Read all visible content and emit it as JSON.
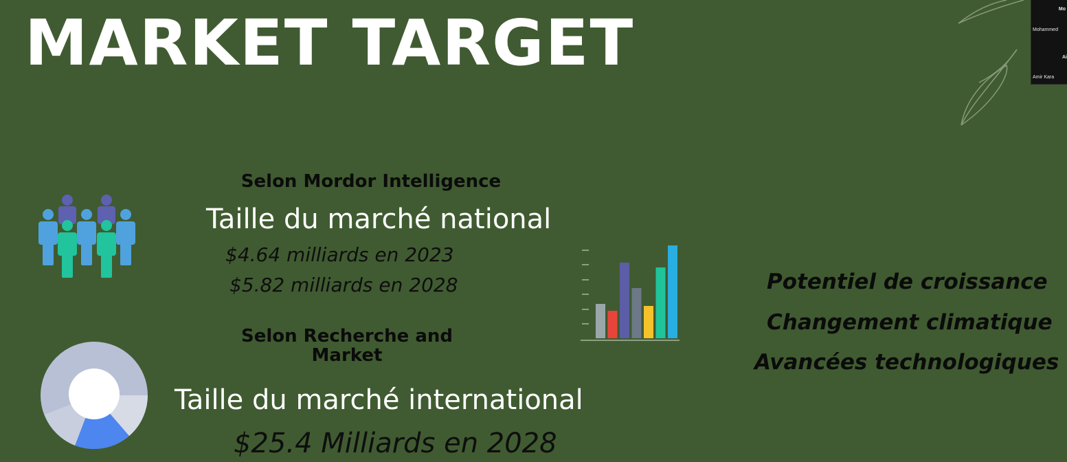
{
  "slide": {
    "title": "MARKET TARGET",
    "background": "#405b31"
  },
  "national": {
    "source": "Selon Mordor Intelligence",
    "heading": "Taille du marché national",
    "values": [
      "$4.64 milliards en 2023",
      "$5.82 milliards en 2028"
    ]
  },
  "international": {
    "source_line1": "Selon Recherche and",
    "source_line2": "Market",
    "heading": "Taille du marché international",
    "value": "$25.4 Milliards en  2028"
  },
  "key_points": [
    "Potentiel de croissance",
    "Changement climatique",
    "Avancées technologiques"
  ],
  "icons": {
    "people": "people-group-icon",
    "donut": "donut-chart-icon",
    "bars": "bar-chart-icon",
    "leaf": "leaf-decoration-icon"
  },
  "bar_icon_colors": [
    "#9aa7a9",
    "#e8443a",
    "#5b5ea6",
    "#6d7889",
    "#f5c22c",
    "#20c49a",
    "#28aee0"
  ],
  "video_call": {
    "participant_top": "Mo",
    "participant_name": "Mohammed",
    "participant_side": "Ai",
    "participant_bottom": "Amir Kara"
  }
}
